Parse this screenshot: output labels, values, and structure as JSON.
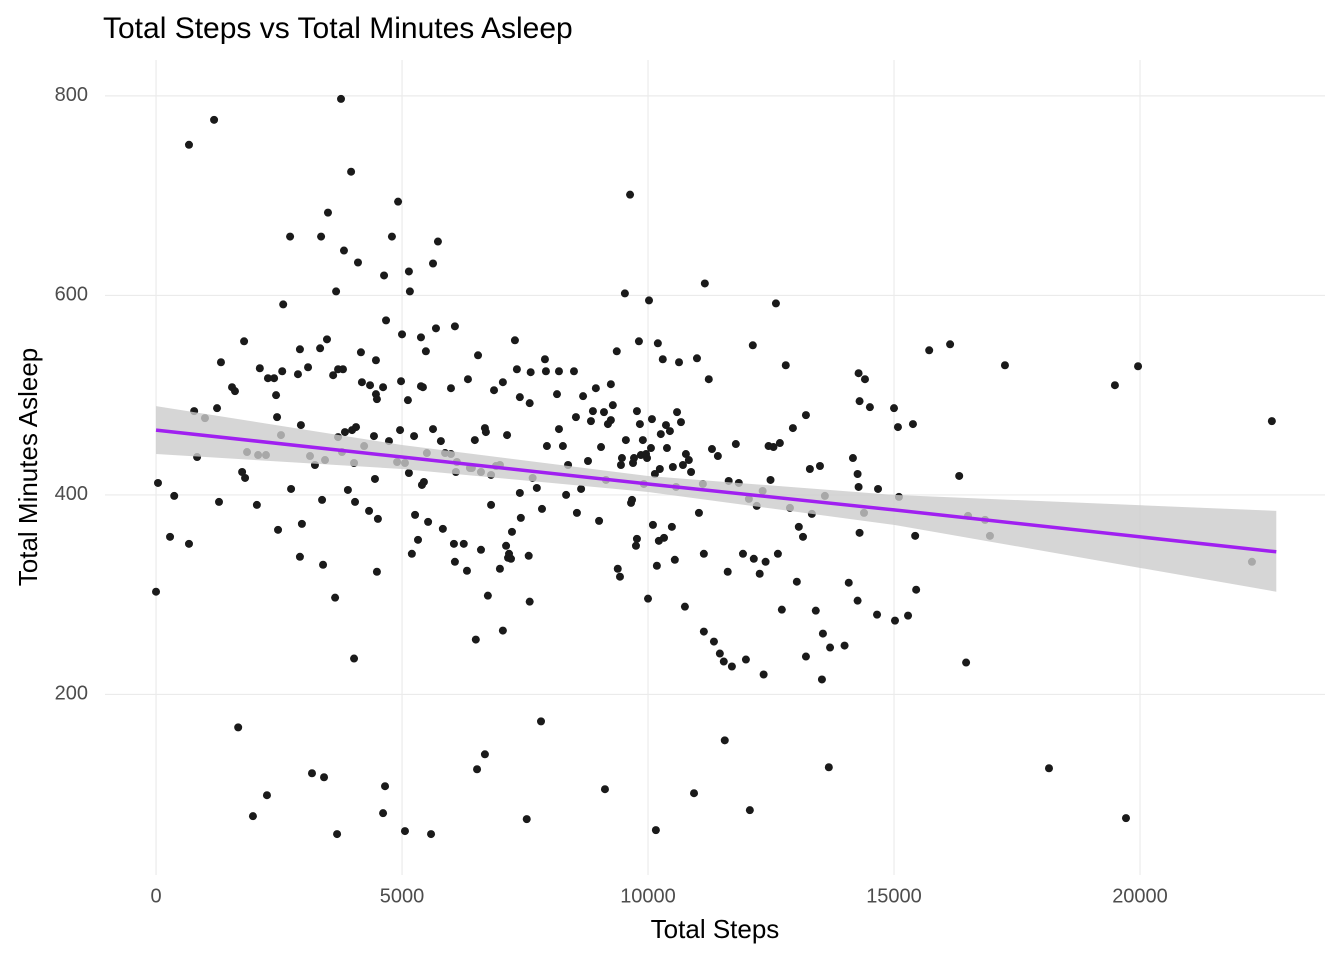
{
  "chart_data": {
    "type": "scatter",
    "title": "Total Steps vs Total Minutes Asleep",
    "x_label": "Total Steps",
    "y_label": "Total Minutes Asleep",
    "xlim": [
      -1037,
      23760
    ],
    "ylim": [
      19,
      836
    ],
    "xticks": [
      0,
      5000,
      10000,
      15000,
      20000
    ],
    "yticks": [
      200,
      400,
      600,
      800
    ],
    "grid": true,
    "series": [
      {
        "color": "#1a1a1a",
        "x": [
          0,
          40,
          285,
          370,
          670,
          670,
          775,
          835,
          995,
          1180,
          1240,
          1280,
          1320,
          1545,
          1605,
          1670,
          1750,
          1790,
          1810,
          1850,
          1970,
          2050,
          2075,
          2110,
          2255,
          2235,
          2275,
          2400,
          2440,
          2460,
          2480,
          2540,
          2565,
          2585,
          2725,
          2745,
          2885,
          2925,
          2925,
          2945,
          2965,
          3090,
          3130,
          3170,
          3230,
          3335,
          3355,
          3375,
          3395,
          3415,
          3435,
          3475,
          3495,
          3600,
          3640,
          3660,
          3680,
          3700,
          3700,
          3760,
          3780,
          3800,
          3820,
          3840,
          3900,
          3965,
          3985,
          4025,
          4025,
          4045,
          4065,
          4105,
          4165,
          4185,
          4230,
          4330,
          4350,
          4430,
          4450,
          4470,
          4470,
          4490,
          4490,
          4510,
          4615,
          4635,
          4655,
          4675,
          4615,
          4735,
          4795,
          4900,
          4920,
          4960,
          4980,
          5000,
          5060,
          5060,
          5120,
          5140,
          5140,
          5160,
          5200,
          5245,
          5265,
          5325,
          5385,
          5385,
          5405,
          5425,
          5445,
          5485,
          5505,
          5530,
          5590,
          5630,
          5630,
          5690,
          5730,
          5790,
          5830,
          5875,
          5995,
          5995,
          6075,
          6055,
          6075,
          6095,
          6115,
          6255,
          6320,
          6340,
          6380,
          6420,
          6480,
          6500,
          6545,
          6525,
          6605,
          6605,
          6685,
          6685,
          6705,
          6745,
          6810,
          6810,
          6870,
          6910,
          6990,
          6990,
          7050,
          7050,
          7115,
          7135,
          7155,
          7175,
          7215,
          7235,
          7295,
          7335,
          7395,
          7395,
          7415,
          7535,
          7575,
          7595,
          7595,
          7615,
          7655,
          7740,
          7825,
          7845,
          7905,
          7925,
          7945,
          8150,
          8190,
          8190,
          8270,
          8335,
          8375,
          8495,
          8535,
          8555,
          8640,
          8680,
          8780,
          8840,
          8880,
          8940,
          9005,
          9045,
          9105,
          9125,
          9145,
          9185,
          9245,
          9245,
          9285,
          9365,
          9385,
          9430,
          9450,
          9470,
          9530,
          9550,
          9635,
          9655,
          9675,
          9695,
          9715,
          9755,
          9775,
          9775,
          9815,
          9835,
          9855,
          9895,
          9915,
          9960,
          9980,
          10000,
          10020,
          10060,
          10080,
          10100,
          10140,
          10160,
          10180,
          10200,
          10220,
          10240,
          10260,
          10300,
          10325,
          10365,
          10385,
          10445,
          10485,
          10505,
          10545,
          10570,
          10590,
          10630,
          10670,
          10710,
          10750,
          10770,
          10830,
          10875,
          10935,
          10995,
          11035,
          11115,
          11135,
          11135,
          11155,
          11235,
          11300,
          11340,
          11420,
          11460,
          11540,
          11560,
          11620,
          11640,
          11705,
          11785,
          11845,
          11930,
          11990,
          12050,
          12070,
          12130,
          12150,
          12210,
          12270,
          12330,
          12350,
          12390,
          12450,
          12490,
          12550,
          12600,
          12640,
          12680,
          12720,
          12800,
          12885,
          12945,
          13025,
          13065,
          13150,
          13210,
          13210,
          13290,
          13330,
          13410,
          13495,
          13535,
          13555,
          13595,
          13675,
          13700,
          13995,
          14080,
          14165,
          14260,
          14260,
          14280,
          14280,
          14300,
          14300,
          14390,
          14410,
          14510,
          14655,
          14675,
          15000,
          15020,
          15080,
          15100,
          15285,
          15385,
          15430,
          15450,
          15715,
          16140,
          16325,
          16465,
          16505,
          16850,
          16950,
          17255,
          18150,
          19490,
          19715,
          19960,
          22275,
          22680
        ],
        "values": [
          303,
          412,
          358,
          399,
          751,
          351,
          484,
          438,
          477,
          776,
          487,
          393,
          533,
          508,
          504,
          167,
          423,
          554,
          417,
          443,
          78,
          390,
          440,
          527,
          99,
          440,
          517,
          517,
          500,
          478,
          365,
          460,
          524,
          591,
          659,
          406,
          521,
          546,
          338,
          470,
          371,
          528,
          439,
          121,
          430,
          547,
          659,
          395,
          330,
          117,
          435,
          556,
          683,
          520,
          297,
          604,
          60,
          458,
          526,
          797,
          443,
          526,
          645,
          463,
          405,
          724,
          465,
          236,
          432,
          393,
          468,
          633,
          543,
          513,
          449,
          384,
          510,
          459,
          416,
          535,
          501,
          323,
          496,
          376,
          508,
          620,
          108,
          575,
          81,
          454,
          659,
          433,
          694,
          465,
          514,
          561,
          63,
          432,
          495,
          624,
          422,
          604,
          341,
          459,
          380,
          355,
          509,
          558,
          410,
          508,
          413,
          544,
          442,
          373,
          60,
          632,
          466,
          567,
          654,
          454,
          366,
          442,
          441,
          507,
          569,
          351,
          333,
          423,
          433,
          351,
          324,
          516,
          427,
          427,
          455,
          255,
          540,
          125,
          345,
          423,
          140,
          467,
          463,
          299,
          420,
          390,
          505,
          429,
          326,
          430,
          264,
          513,
          349,
          460,
          337,
          341,
          336,
          363,
          555,
          526,
          498,
          402,
          377,
          75,
          339,
          293,
          492,
          523,
          417,
          407,
          173,
          386,
          536,
          524,
          449,
          501,
          524,
          466,
          449,
          400,
          430,
          524,
          478,
          382,
          406,
          499,
          434,
          474,
          484,
          507,
          374,
          448,
          483,
          105,
          415,
          471,
          511,
          475,
          490,
          544,
          326,
          318,
          430,
          437,
          602,
          455,
          701,
          392,
          395,
          432,
          437,
          349,
          356,
          484,
          554,
          471,
          440,
          455,
          411,
          441,
          437,
          296,
          595,
          447,
          476,
          370,
          421,
          64,
          329,
          552,
          354,
          426,
          461,
          536,
          357,
          470,
          447,
          464,
          368,
          428,
          335,
          408,
          483,
          533,
          473,
          430,
          288,
          441,
          435,
          423,
          101,
          537,
          382,
          411,
          341,
          263,
          612,
          516,
          446,
          253,
          439,
          241,
          233,
          154,
          323,
          414,
          228,
          451,
          412,
          341,
          235,
          396,
          84,
          550,
          336,
          389,
          321,
          404,
          220,
          333,
          449,
          415,
          448,
          592,
          341,
          452,
          285,
          530,
          387,
          467,
          313,
          368,
          358,
          480,
          238,
          426,
          381,
          284,
          429,
          215,
          261,
          399,
          127,
          247,
          249,
          312,
          437,
          294,
          421,
          408,
          522,
          362,
          494,
          382,
          516,
          488,
          280,
          406,
          487,
          274,
          468,
          398,
          279,
          471,
          359,
          305,
          545,
          551,
          419,
          232,
          379,
          375,
          359,
          530,
          126,
          510,
          76,
          529,
          333,
          474
        ]
      }
    ],
    "fit": {
      "color": "#a020f0",
      "band_color": "#cccccc",
      "x": [
        0,
        5000,
        10000,
        15000,
        22770
      ],
      "y": [
        465,
        438,
        411,
        385,
        343
      ],
      "lower": [
        441,
        426,
        403,
        370,
        303
      ],
      "upper": [
        489,
        450,
        419,
        400,
        384
      ]
    }
  }
}
